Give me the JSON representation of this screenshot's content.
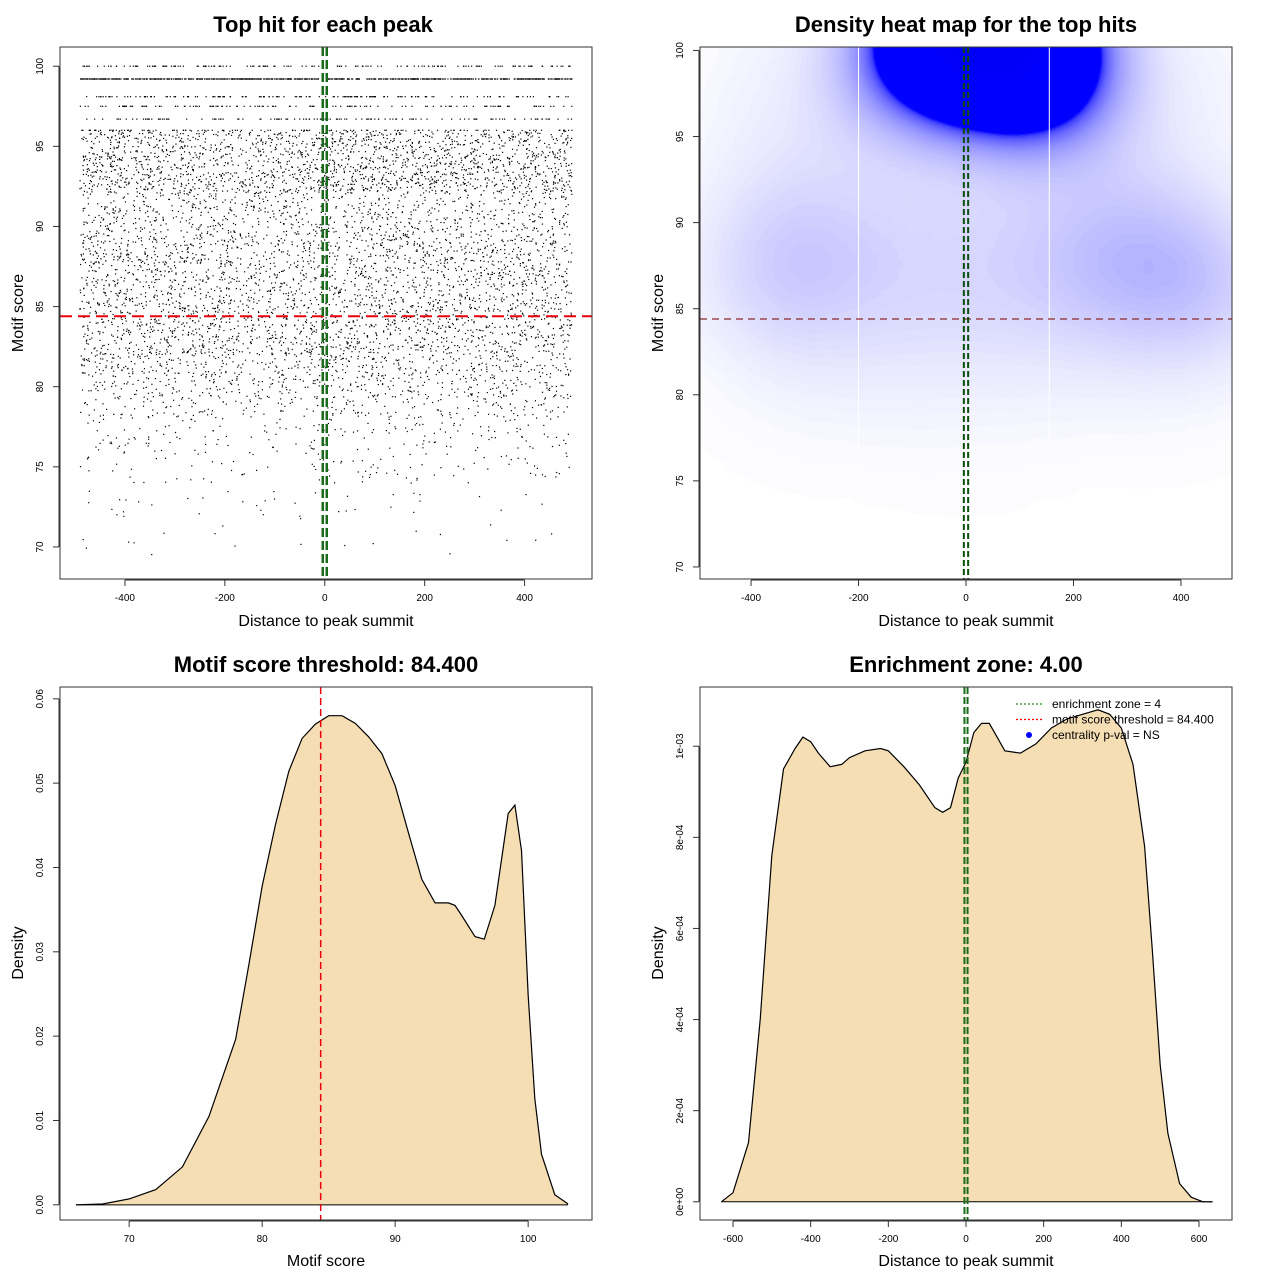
{
  "chart_data": [
    {
      "panel": "scatter",
      "type": "scatter",
      "title": "Top hit for each peak",
      "xlabel": "Distance to peak summit",
      "ylabel": "Motif score",
      "xlim": [
        -530,
        535
      ],
      "ylim": [
        68,
        101.2
      ],
      "xticks": [
        -400,
        -200,
        0,
        200,
        400
      ],
      "yticks": [
        70,
        75,
        80,
        85,
        90,
        95,
        100
      ],
      "x_range": [
        -490,
        495
      ],
      "bands": [
        {
          "y": 99.2,
          "density": 0.95
        },
        {
          "y": 100.0,
          "density": 0.22
        },
        {
          "y": 98.1,
          "density": 0.22
        },
        {
          "y": 97.5,
          "density": 0.18
        },
        {
          "y": 96.7,
          "density": 0.18
        },
        {
          "y": 96.0,
          "density": 0.14
        }
      ],
      "point_count": 6500,
      "score_threshold": 84.4,
      "enrichment_zone": [
        -4,
        4
      ]
    },
    {
      "panel": "heatmap",
      "type": "heatmap",
      "title": "Density heat map for the top hits",
      "xlabel": "Distance to peak summit",
      "ylabel": "Motif score",
      "xlim": [
        -495,
        495
      ],
      "ylim": [
        69.3,
        100.2
      ],
      "xticks": [
        -400,
        -200,
        0,
        200,
        400
      ],
      "yticks": [
        70,
        75,
        80,
        85,
        90,
        95,
        100
      ],
      "vertical_lines": [
        -200,
        155
      ],
      "density_blobs": [
        {
          "x": 30,
          "y": 99.3,
          "level": 3.0
        },
        {
          "x": -300,
          "y": 87.2,
          "level": 0.9
        },
        {
          "x": -200,
          "y": 85.5,
          "level": 0.8
        },
        {
          "x": 220,
          "y": 88.2,
          "level": 0.9
        },
        {
          "x": 380,
          "y": 86.0,
          "level": 1.0
        },
        {
          "x": 0,
          "y": 86.0,
          "level": 0.7
        },
        {
          "x": -100,
          "y": 90.0,
          "level": 0.6
        },
        {
          "x": 100,
          "y": 91.0,
          "level": 0.6
        },
        {
          "x": -330,
          "y": 94.0,
          "level": 0.5
        },
        {
          "x": 350,
          "y": 95.0,
          "level": 0.5
        },
        {
          "x": 0,
          "y": 96.0,
          "level": 0.5
        },
        {
          "x": -150,
          "y": 82.0,
          "level": 0.5
        },
        {
          "x": 200,
          "y": 82.5,
          "level": 0.5
        },
        {
          "x": -300,
          "y": 81.0,
          "level": 0.4
        },
        {
          "x": 400,
          "y": 81.5,
          "level": 0.4
        },
        {
          "x": 0,
          "y": 78.0,
          "level": 0.25
        },
        {
          "x": -300,
          "y": 99.0,
          "level": 0.5
        },
        {
          "x": 360,
          "y": 99.0,
          "level": 0.5
        }
      ],
      "score_threshold": 84.4,
      "enrichment_zone": [
        -4,
        4
      ]
    },
    {
      "panel": "score-density",
      "type": "area",
      "title": "Motif score threshold: 84.400",
      "xlabel": "Motif score",
      "ylabel": "Density",
      "xlim": [
        64.8,
        104.8
      ],
      "ylim": [
        -0.0018,
        0.0614
      ],
      "xticks": [
        70,
        80,
        90,
        100
      ],
      "yticks": [
        "0.00",
        "0.01",
        "0.02",
        "0.03",
        "0.04",
        "0.05",
        "0.06"
      ],
      "ytick_values": [
        0,
        0.01,
        0.02,
        0.03,
        0.04,
        0.05,
        0.06
      ],
      "x": [
        66,
        68,
        70,
        72,
        74,
        76,
        78,
        79,
        80,
        81,
        82,
        83,
        84,
        85,
        86,
        87,
        88,
        89,
        90,
        91,
        92,
        93,
        94,
        94.5,
        95,
        96,
        96.7,
        97.5,
        98,
        98.5,
        99,
        99.5,
        100,
        100.5,
        101,
        102,
        103
      ],
      "y": [
        0,
        0.0001,
        0.0007,
        0.0018,
        0.0045,
        0.0105,
        0.0196,
        0.0285,
        0.0378,
        0.0451,
        0.0514,
        0.0553,
        0.057,
        0.058,
        0.058,
        0.0571,
        0.0555,
        0.0535,
        0.0497,
        0.0441,
        0.0386,
        0.0358,
        0.0358,
        0.0355,
        0.0343,
        0.0318,
        0.0315,
        0.0355,
        0.041,
        0.0464,
        0.0474,
        0.042,
        0.0248,
        0.0126,
        0.006,
        0.0012,
        0.0001
      ],
      "threshold": 84.4,
      "fill": "#F5DEB3"
    },
    {
      "panel": "distance-density",
      "type": "area",
      "title": "Enrichment zone: 4.00",
      "xlabel": "Distance to peak summit",
      "ylabel": "Density",
      "xlim": [
        -685,
        685
      ],
      "ylim": [
        -4e-05,
        0.00113
      ],
      "xticks": [
        -600,
        -400,
        -200,
        0,
        200,
        400,
        600
      ],
      "yticks": [
        "0e+00",
        "2e-04",
        "4e-04",
        "6e-04",
        "8e-04",
        "1e-03"
      ],
      "ytick_values": [
        0,
        0.0002,
        0.0004,
        0.0006,
        0.0008,
        0.001
      ],
      "x": [
        -630,
        -600,
        -560,
        -530,
        -500,
        -470,
        -440,
        -420,
        -400,
        -380,
        -350,
        -320,
        -300,
        -260,
        -220,
        -200,
        -160,
        -120,
        -80,
        -60,
        -40,
        -20,
        0,
        20,
        40,
        60,
        80,
        100,
        140,
        180,
        220,
        260,
        300,
        340,
        370,
        400,
        430,
        460,
        480,
        500,
        520,
        550,
        580,
        610,
        635
      ],
      "y": [
        0,
        2e-05,
        0.00013,
        0.0004,
        0.00076,
        0.00095,
        0.000995,
        0.00102,
        0.00101,
        0.000985,
        0.000955,
        0.00096,
        0.000975,
        0.00099,
        0.000995,
        0.00099,
        0.000955,
        0.000915,
        0.000865,
        0.000855,
        0.000865,
        0.00093,
        0.000965,
        0.00103,
        0.00105,
        0.00105,
        0.00102,
        0.00099,
        0.000985,
        0.001005,
        0.00104,
        0.00106,
        0.00107,
        0.00108,
        0.00107,
        0.00104,
        0.00096,
        0.00078,
        0.00055,
        0.0003,
        0.00015,
        4e-05,
        1e-05,
        0,
        0
      ],
      "enrichment_zone": [
        -4,
        4
      ],
      "fill": "#F5DEB3",
      "legend": [
        {
          "label": "enrichment zone = 4",
          "color": "#228B22",
          "style": "dotted-line"
        },
        {
          "label": "motif score threshold = 84.400",
          "color": "#FF0000",
          "style": "dotted-line"
        },
        {
          "label": "centrality p-val = NS",
          "color": "#0000FF",
          "style": "point"
        }
      ],
      "legend_position": "top-right"
    }
  ],
  "colors": {
    "threshold": "#E8000B",
    "zone": "#1A6B1A",
    "fill": "#F5DEB3",
    "heat_low": "#FFFFFF",
    "heat_mid": "#0000FF",
    "heat_high": "#FF0000"
  }
}
